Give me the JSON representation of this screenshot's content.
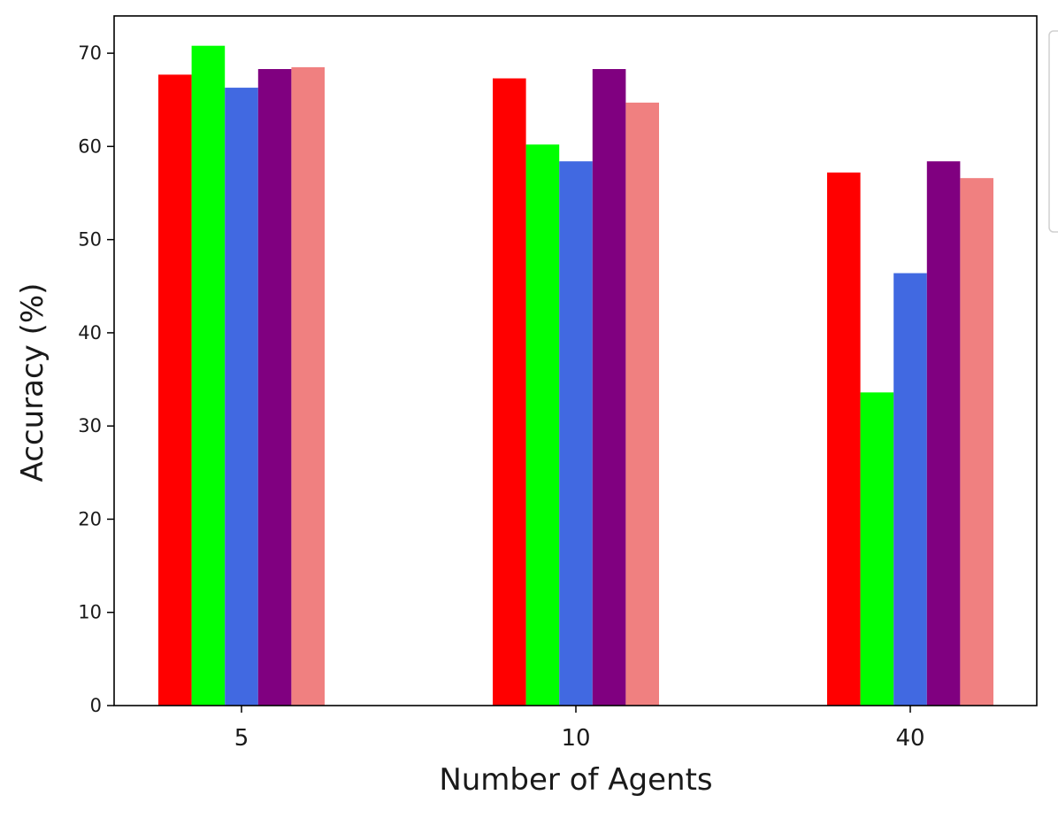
{
  "chart_data": {
    "type": "bar",
    "title": "",
    "xlabel": "Number of Agents",
    "ylabel": "Accuracy (%)",
    "categories": [
      "5",
      "10",
      "40"
    ],
    "ylim": [
      0,
      74
    ],
    "yticks": [
      "0",
      "10",
      "20",
      "30",
      "40",
      "50",
      "60",
      "70"
    ],
    "grid": false,
    "legend_placement": "right, partially cropped (no legible entry text)",
    "series": [
      {
        "color": "#ff0000",
        "values": [
          67.7,
          67.3,
          57.2
        ]
      },
      {
        "color": "#00ff00",
        "values": [
          70.8,
          60.2,
          33.6
        ]
      },
      {
        "color": "#4169e1",
        "values": [
          66.3,
          58.4,
          46.4
        ]
      },
      {
        "color": "#800080",
        "values": [
          68.3,
          68.3,
          58.4
        ]
      },
      {
        "color": "#f08080",
        "values": [
          68.5,
          64.7,
          56.6
        ]
      }
    ]
  }
}
